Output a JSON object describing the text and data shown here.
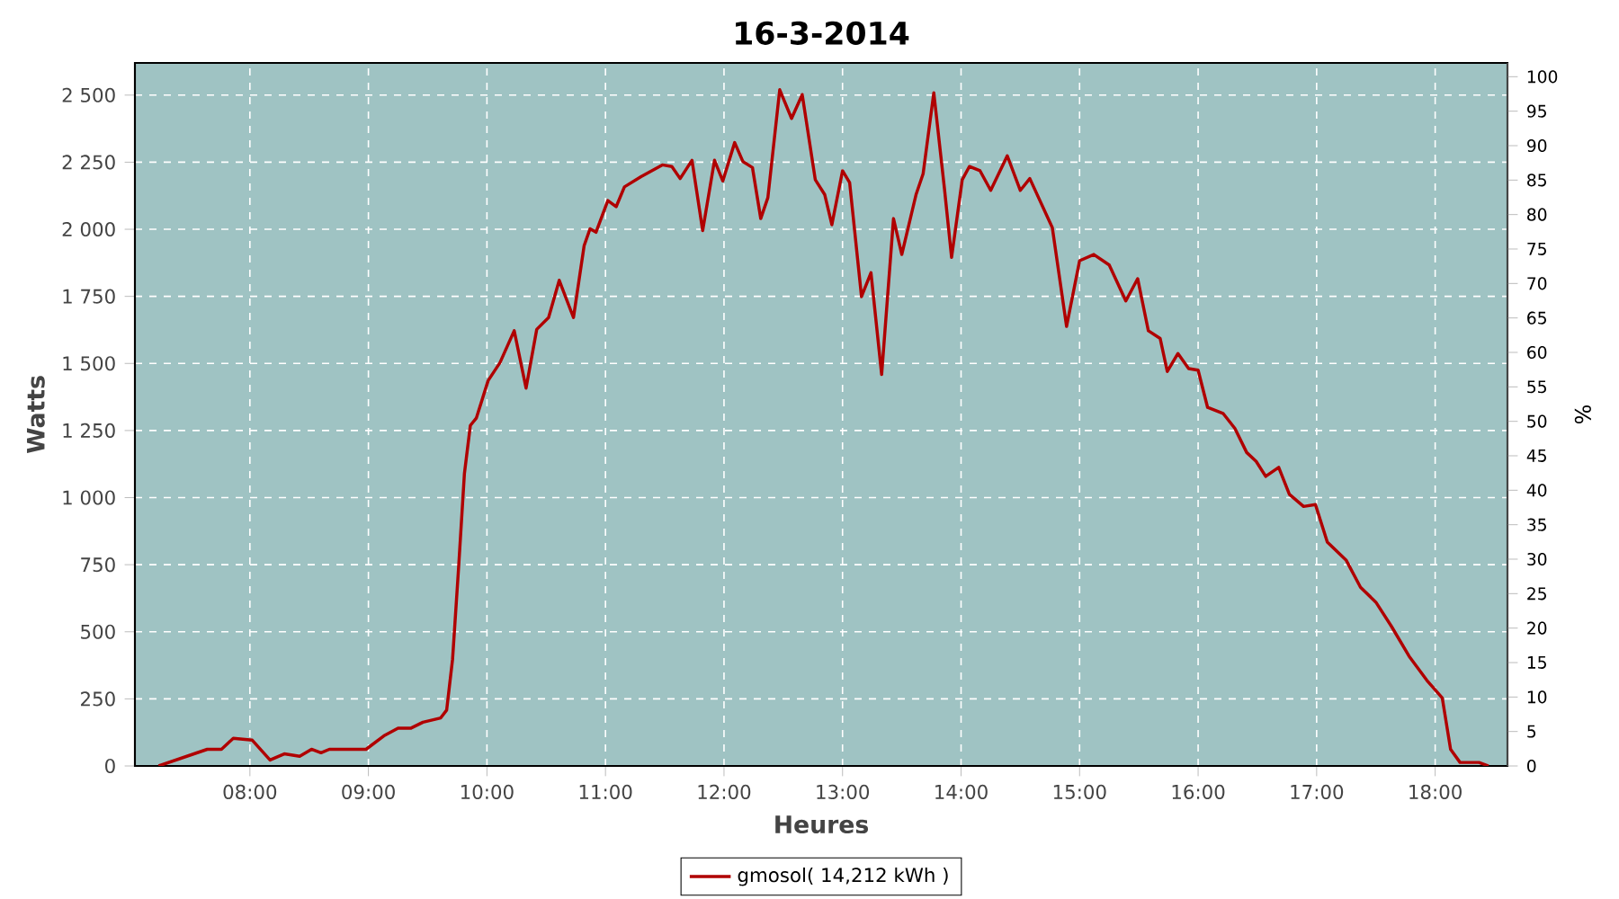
{
  "chart_data": {
    "type": "line",
    "title": "16-3-2014",
    "xlabel": "Heures",
    "ylabel": "Watts",
    "y2label": "%",
    "xlim": [
      7.03,
      18.61
    ],
    "ylim": [
      0,
      2620
    ],
    "y2lim": [
      0,
      102
    ],
    "xticks": [
      {
        "value": 8,
        "label": "08:00"
      },
      {
        "value": 9,
        "label": "09:00"
      },
      {
        "value": 10,
        "label": "10:00"
      },
      {
        "value": 11,
        "label": "11:00"
      },
      {
        "value": 12,
        "label": "12:00"
      },
      {
        "value": 13,
        "label": "13:00"
      },
      {
        "value": 14,
        "label": "14:00"
      },
      {
        "value": 15,
        "label": "15:00"
      },
      {
        "value": 16,
        "label": "16:00"
      },
      {
        "value": 17,
        "label": "17:00"
      },
      {
        "value": 18,
        "label": "18:00"
      }
    ],
    "yticks": [
      0,
      250,
      500,
      750,
      {
        "value": 1000,
        "label": "1 000"
      },
      {
        "value": 1250,
        "label": "1 250"
      },
      {
        "value": 1500,
        "label": "1 500"
      },
      {
        "value": 1750,
        "label": "1 750"
      },
      {
        "value": 2000,
        "label": "2 000"
      },
      {
        "value": 2250,
        "label": "2 250"
      },
      {
        "value": 2500,
        "label": "2 500"
      }
    ],
    "y2ticks": [
      0,
      5,
      10,
      15,
      20,
      25,
      30,
      35,
      40,
      45,
      50,
      55,
      60,
      65,
      70,
      75,
      80,
      85,
      90,
      95,
      100
    ],
    "grid": true,
    "legend": "bottom",
    "series": [
      {
        "name": "gmosol( 14,212 kWh )",
        "color": "#b00000",
        "x": [
          7.23,
          7.64,
          7.76,
          7.86,
          8.02,
          8.17,
          8.29,
          8.42,
          8.52,
          8.6,
          8.67,
          8.98,
          9.13,
          9.25,
          9.36,
          9.46,
          9.61,
          9.66,
          9.71,
          9.76,
          9.81,
          9.86,
          9.91,
          10.01,
          10.11,
          10.23,
          10.33,
          10.42,
          10.52,
          10.61,
          10.73,
          10.82,
          10.87,
          10.92,
          11.02,
          11.09,
          11.16,
          11.3,
          11.48,
          11.56,
          11.63,
          11.73,
          11.82,
          11.92,
          11.99,
          12.09,
          12.16,
          12.24,
          12.31,
          12.37,
          12.47,
          12.57,
          12.66,
          12.77,
          12.85,
          12.91,
          13.0,
          13.06,
          13.16,
          13.24,
          13.33,
          13.43,
          13.5,
          13.62,
          13.68,
          13.77,
          13.86,
          13.92,
          14.01,
          14.07,
          14.16,
          14.25,
          14.39,
          14.5,
          14.58,
          14.77,
          14.89,
          15.0,
          15.12,
          15.25,
          15.39,
          15.49,
          15.58,
          15.68,
          15.74,
          15.83,
          15.92,
          16.0,
          16.08,
          16.21,
          16.31,
          16.41,
          16.49,
          16.57,
          16.68,
          16.77,
          16.89,
          16.99,
          17.09,
          17.25,
          17.37,
          17.5,
          17.63,
          17.78,
          17.93,
          18.06,
          18.13,
          18.21,
          18.37,
          18.45
        ],
        "values": [
          0,
          62,
          62,
          103,
          96,
          22,
          45,
          36,
          62,
          49,
          62,
          62,
          112,
          141,
          141,
          163,
          179,
          208,
          398,
          733,
          1090,
          1269,
          1296,
          1436,
          1503,
          1622,
          1408,
          1627,
          1671,
          1810,
          1671,
          1939,
          2002,
          1989,
          2107,
          2084,
          2158,
          2196,
          2240,
          2234,
          2189,
          2257,
          1995,
          2257,
          2180,
          2323,
          2252,
          2230,
          2040,
          2118,
          2520,
          2413,
          2502,
          2185,
          2129,
          2017,
          2218,
          2174,
          1749,
          1838,
          1459,
          2040,
          1906,
          2129,
          2207,
          2509,
          2151,
          1895,
          2185,
          2234,
          2218,
          2145,
          2274,
          2145,
          2189,
          2006,
          1638,
          1883,
          1906,
          1867,
          1733,
          1816,
          1622,
          1593,
          1470,
          1537,
          1481,
          1475,
          1336,
          1314,
          1258,
          1168,
          1135,
          1079,
          1113,
          1012,
          967,
          974,
          834,
          766,
          666,
          610,
          521,
          409,
          319,
          253,
          62,
          13,
          13,
          0
        ]
      }
    ]
  }
}
